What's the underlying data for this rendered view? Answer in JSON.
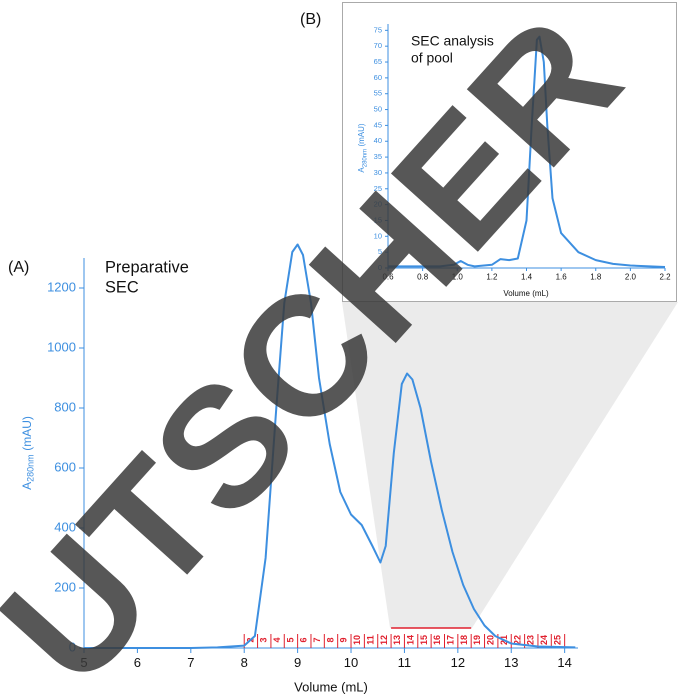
{
  "watermark": "UTSCHER",
  "chart_data": [
    {
      "type": "line",
      "panel_label": "(A)",
      "annotation": [
        "Preparative",
        "SEC"
      ],
      "x_label": "Volume (mL)",
      "y_label": [
        "A",
        "280nm",
        "(mAU)"
      ],
      "color": "#3d8fe0",
      "x": [
        5,
        6,
        7,
        7.5,
        8.0,
        8.2,
        8.4,
        8.6,
        8.75,
        8.9,
        9.0,
        9.1,
        9.25,
        9.4,
        9.6,
        9.8,
        10.0,
        10.2,
        10.4,
        10.55,
        10.65,
        10.8,
        10.95,
        11.05,
        11.15,
        11.3,
        11.5,
        11.7,
        11.9,
        12.1,
        12.3,
        12.5,
        12.7,
        13.0,
        13.5,
        14.2
      ],
      "values": [
        0,
        0,
        0,
        2,
        8,
        40,
        300,
        800,
        1150,
        1320,
        1345,
        1310,
        1150,
        900,
        680,
        520,
        445,
        410,
        340,
        285,
        340,
        650,
        880,
        915,
        895,
        800,
        620,
        460,
        320,
        210,
        130,
        75,
        40,
        15,
        5,
        2
      ],
      "xlim": [
        5,
        14.25
      ],
      "ylim": [
        0,
        1300
      ],
      "xticks": [
        5,
        6,
        7,
        8,
        9,
        10,
        11,
        12,
        13,
        14
      ],
      "yticks": [
        0,
        200,
        400,
        600,
        800,
        1000,
        1200
      ],
      "fraction_color": "#e0202e",
      "fractions": {
        "labels": [
          2,
          3,
          4,
          5,
          6,
          7,
          8,
          9,
          10,
          11,
          12,
          13,
          14,
          15,
          16,
          17,
          18,
          19,
          20,
          21,
          22,
          23,
          24,
          25
        ],
        "edges": [
          8.0,
          8.25,
          8.5,
          8.75,
          9.0,
          9.25,
          9.5,
          9.75,
          10.0,
          10.25,
          10.5,
          10.75,
          11.0,
          11.25,
          11.5,
          11.75,
          12.0,
          12.25,
          12.5,
          12.75,
          13.0,
          13.25,
          13.5,
          13.75,
          14.0
        ]
      },
      "pool": [
        10.75,
        12.25
      ]
    },
    {
      "type": "line",
      "panel_label": "(B)",
      "annotation": [
        "SEC analysis",
        "of pool"
      ],
      "x_label": "Volume (mL)",
      "y_label": [
        "A",
        "280nm",
        "(mAU)"
      ],
      "color": "#3d8fe0",
      "x": [
        0.6,
        0.9,
        0.98,
        1.02,
        1.06,
        1.1,
        1.2,
        1.25,
        1.3,
        1.35,
        1.4,
        1.43,
        1.46,
        1.475,
        1.5,
        1.52,
        1.55,
        1.6,
        1.7,
        1.8,
        1.9,
        2.0,
        2.2
      ],
      "values": [
        0.5,
        0.5,
        1,
        2.2,
        1,
        0.5,
        1,
        2.8,
        2.5,
        3,
        15,
        45,
        72,
        73,
        65,
        45,
        22,
        11,
        5,
        2.5,
        1.3,
        0.8,
        0.3
      ],
      "xlim": [
        0.6,
        2.2
      ],
      "ylim": [
        0,
        77
      ],
      "xticks": [
        0.6,
        0.8,
        {
          "value": 1.0,
          "label": "1.0"
        },
        1.2,
        1.4,
        1.6,
        1.8,
        {
          "value": 2.0,
          "label": "2.0"
        },
        2.2
      ],
      "yticks": [
        0,
        5,
        10,
        15,
        20,
        25,
        30,
        35,
        40,
        45,
        50,
        55,
        60,
        65,
        70,
        75
      ]
    }
  ]
}
